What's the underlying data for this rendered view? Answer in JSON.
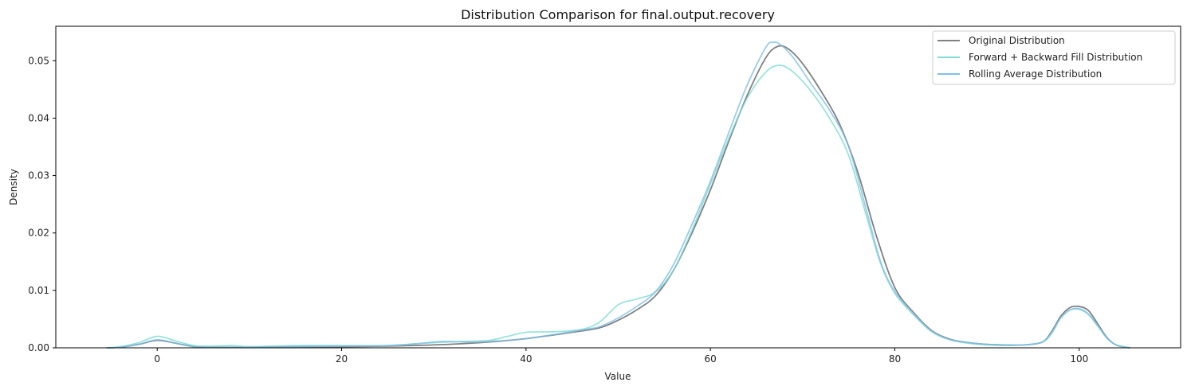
{
  "chart_data": {
    "type": "line",
    "title": "Distribution Comparison for final.output.recovery",
    "xlabel": "Value",
    "ylabel": "Density",
    "xlim": [
      -11,
      111
    ],
    "ylim": [
      0,
      0.056
    ],
    "xticks": [
      0,
      20,
      40,
      60,
      80,
      100
    ],
    "yticks": [
      0.0,
      0.01,
      0.02,
      0.03,
      0.04,
      0.05
    ],
    "ytick_labels": [
      "0.00",
      "0.01",
      "0.02",
      "0.03",
      "0.04",
      "0.05"
    ],
    "grid": false,
    "legend_position": "top-right",
    "series": [
      {
        "name": "Original Distribution",
        "color": "#808080",
        "points": [
          [
            -5.5,
            0
          ],
          [
            -4,
            0.0001
          ],
          [
            -2,
            0.0006
          ],
          [
            0,
            0.0013
          ],
          [
            2,
            0.0008
          ],
          [
            4,
            0.0002
          ],
          [
            6,
            0.0001
          ],
          [
            10,
            0.0001
          ],
          [
            15,
            0.0002
          ],
          [
            20,
            0.0002
          ],
          [
            25,
            0.0003
          ],
          [
            30,
            0.0005
          ],
          [
            35,
            0.0009
          ],
          [
            40,
            0.0016
          ],
          [
            45,
            0.0027
          ],
          [
            48,
            0.0035
          ],
          [
            50,
            0.0048
          ],
          [
            52,
            0.0066
          ],
          [
            54,
            0.009
          ],
          [
            56,
            0.0135
          ],
          [
            58,
            0.02
          ],
          [
            60,
            0.0275
          ],
          [
            62,
            0.036
          ],
          [
            64,
            0.044
          ],
          [
            66,
            0.0505
          ],
          [
            67.3,
            0.0525
          ],
          [
            68.5,
            0.052
          ],
          [
            70,
            0.0495
          ],
          [
            72,
            0.0447
          ],
          [
            74,
            0.039
          ],
          [
            76,
            0.0305
          ],
          [
            78,
            0.0195
          ],
          [
            80,
            0.0105
          ],
          [
            82,
            0.0062
          ],
          [
            84,
            0.003
          ],
          [
            86,
            0.0015
          ],
          [
            88,
            0.0009
          ],
          [
            90,
            0.0006
          ],
          [
            92,
            0.0005
          ],
          [
            94,
            0.0005
          ],
          [
            96,
            0.001
          ],
          [
            97,
            0.0028
          ],
          [
            98,
            0.0055
          ],
          [
            99,
            0.007
          ],
          [
            100,
            0.0072
          ],
          [
            101,
            0.0065
          ],
          [
            102,
            0.0042
          ],
          [
            103,
            0.0018
          ],
          [
            104,
            0.0005
          ],
          [
            105.5,
            0
          ]
        ]
      },
      {
        "name": "Forward + Backward Fill Distribution",
        "color": "#7fdbd4",
        "points": [
          [
            -5.5,
            0
          ],
          [
            -4,
            0.0002
          ],
          [
            -2,
            0.0009
          ],
          [
            0,
            0.002
          ],
          [
            2,
            0.0012
          ],
          [
            4,
            0.0004
          ],
          [
            6,
            0.0003
          ],
          [
            8,
            0.0004
          ],
          [
            10,
            0.0002
          ],
          [
            15,
            0.0004
          ],
          [
            20,
            0.0004
          ],
          [
            25,
            0.0004
          ],
          [
            30,
            0.0009
          ],
          [
            33,
            0.0011
          ],
          [
            36,
            0.0013
          ],
          [
            38,
            0.002
          ],
          [
            40,
            0.0027
          ],
          [
            43,
            0.0028
          ],
          [
            46,
            0.0032
          ],
          [
            48,
            0.0045
          ],
          [
            50,
            0.0075
          ],
          [
            52,
            0.0085
          ],
          [
            54,
            0.0097
          ],
          [
            56,
            0.0135
          ],
          [
            58,
            0.0205
          ],
          [
            60,
            0.0285
          ],
          [
            62,
            0.0365
          ],
          [
            64,
            0.0435
          ],
          [
            66,
            0.048
          ],
          [
            67.5,
            0.0492
          ],
          [
            69,
            0.048
          ],
          [
            71,
            0.0445
          ],
          [
            73,
            0.0398
          ],
          [
            75,
            0.0335
          ],
          [
            77,
            0.0225
          ],
          [
            78.5,
            0.0145
          ],
          [
            80,
            0.0095
          ],
          [
            82,
            0.0058
          ],
          [
            84,
            0.0028
          ],
          [
            86,
            0.0014
          ],
          [
            88,
            0.0008
          ],
          [
            90,
            0.0005
          ],
          [
            92,
            0.0004
          ],
          [
            94,
            0.0005
          ],
          [
            96,
            0.001
          ],
          [
            97,
            0.0025
          ],
          [
            98,
            0.0052
          ],
          [
            99,
            0.0066
          ],
          [
            100,
            0.0067
          ],
          [
            101,
            0.0058
          ],
          [
            102,
            0.0038
          ],
          [
            103,
            0.0017
          ],
          [
            104,
            0.0005
          ],
          [
            105.5,
            0
          ]
        ]
      },
      {
        "name": "Rolling Average Distribution",
        "color": "#7fbfe6",
        "points": [
          [
            -5.5,
            0
          ],
          [
            -4,
            0.0001
          ],
          [
            -2,
            0.0006
          ],
          [
            0,
            0.0014
          ],
          [
            2,
            0.0008
          ],
          [
            4,
            0.0002
          ],
          [
            6,
            0.0001
          ],
          [
            10,
            0.0001
          ],
          [
            15,
            0.0002
          ],
          [
            20,
            0.0003
          ],
          [
            25,
            0.0004
          ],
          [
            28,
            0.0007
          ],
          [
            31,
            0.0011
          ],
          [
            34,
            0.001
          ],
          [
            37,
            0.0012
          ],
          [
            40,
            0.0016
          ],
          [
            43,
            0.0023
          ],
          [
            46,
            0.0031
          ],
          [
            48,
            0.0037
          ],
          [
            50,
            0.0052
          ],
          [
            52,
            0.0072
          ],
          [
            54,
            0.0097
          ],
          [
            56,
            0.0145
          ],
          [
            58,
            0.0215
          ],
          [
            60,
            0.029
          ],
          [
            62,
            0.0375
          ],
          [
            64,
            0.0458
          ],
          [
            66,
            0.0523
          ],
          [
            66.8,
            0.0532
          ],
          [
            67.6,
            0.0528
          ],
          [
            69,
            0.0505
          ],
          [
            71,
            0.0458
          ],
          [
            73,
            0.0412
          ],
          [
            75,
            0.035
          ],
          [
            77,
            0.0235
          ],
          [
            78.5,
            0.0148
          ],
          [
            80,
            0.0098
          ],
          [
            82,
            0.006
          ],
          [
            84,
            0.0029
          ],
          [
            86,
            0.0014
          ],
          [
            88,
            0.0009
          ],
          [
            90,
            0.0006
          ],
          [
            92,
            0.0005
          ],
          [
            94,
            0.0005
          ],
          [
            96,
            0.001
          ],
          [
            97,
            0.0026
          ],
          [
            98,
            0.0052
          ],
          [
            99,
            0.0066
          ],
          [
            100,
            0.0068
          ],
          [
            101,
            0.0059
          ],
          [
            102,
            0.0039
          ],
          [
            103,
            0.0017
          ],
          [
            104,
            0.0005
          ],
          [
            105.5,
            0
          ]
        ]
      }
    ]
  }
}
